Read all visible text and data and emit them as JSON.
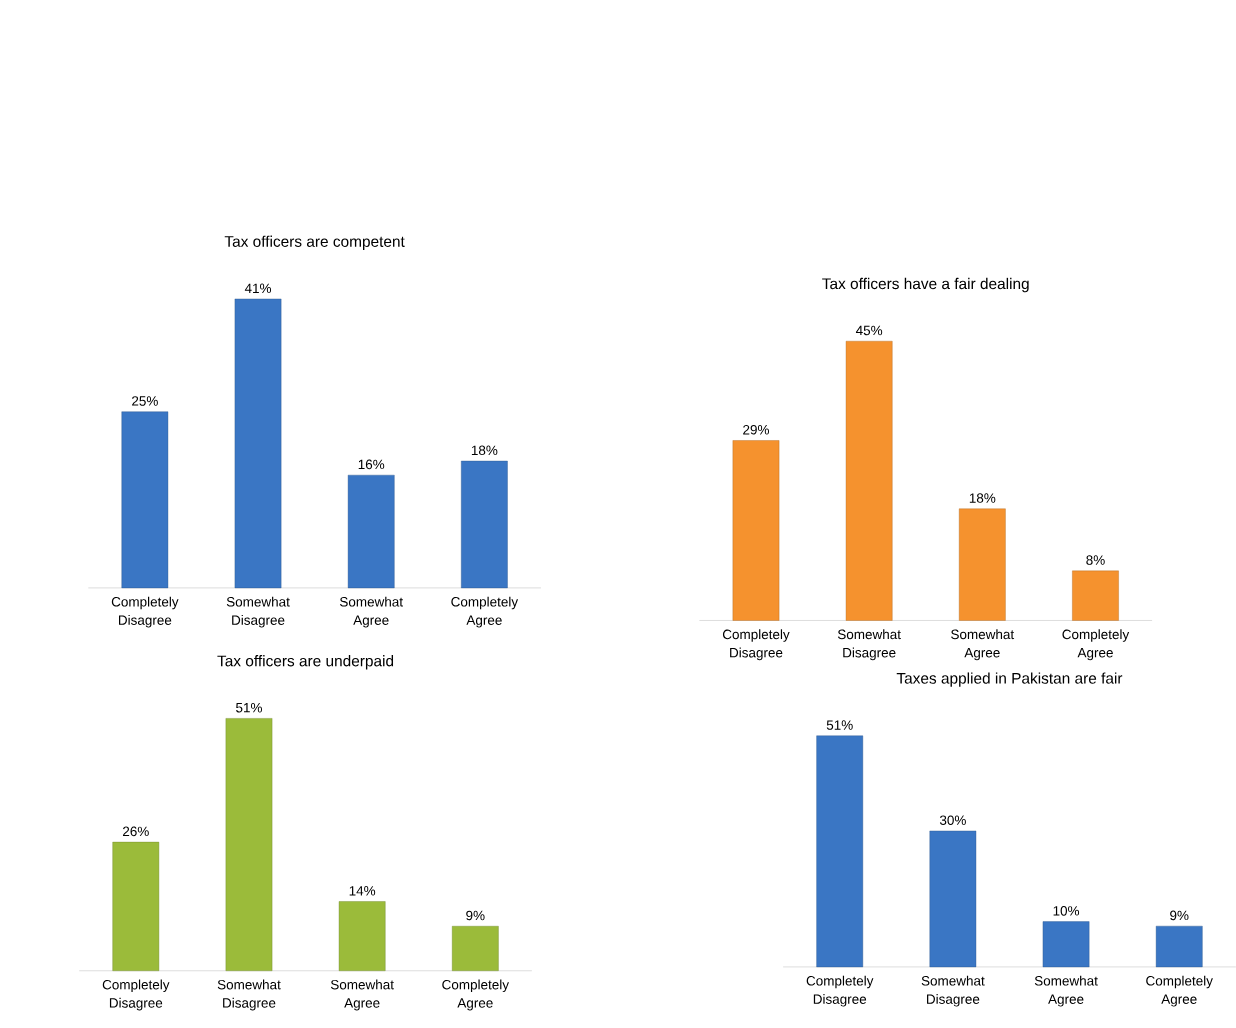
{
  "chart_data": [
    {
      "type": "bar",
      "title": "Tax officers are competent",
      "categories": [
        "Completely Disagree",
        "Somewhat Disagree",
        "Somewhat Agree",
        "Completely Agree"
      ],
      "values": [
        25,
        41,
        16,
        18
      ],
      "value_labels": [
        "25%",
        "41%",
        "16%",
        "18%"
      ],
      "color": "#3a76c4"
    },
    {
      "type": "bar",
      "title": "Tax officers have a fair dealing",
      "categories": [
        "Completely Disagree",
        "Somewhat Disagree",
        "Somewhat Agree",
        "Completely Agree"
      ],
      "values": [
        29,
        45,
        18,
        8
      ],
      "value_labels": [
        "29%",
        "45%",
        "18%",
        "8%"
      ],
      "color": "#f5922e"
    },
    {
      "type": "bar",
      "title": "Tax officers are underpaid",
      "categories": [
        "Completely Disagree",
        "Somewhat Disagree",
        "Somewhat Agree",
        "Completely Agree"
      ],
      "values": [
        26,
        51,
        14,
        9
      ],
      "value_labels": [
        "26%",
        "51%",
        "14%",
        "9%"
      ],
      "color": "#9bbb3a"
    },
    {
      "type": "bar",
      "title": "Taxes applied in Pakistan are fair",
      "categories": [
        "Completely Disagree",
        "Somewhat Disagree",
        "Somewhat Agree",
        "Completely Agree"
      ],
      "values": [
        51,
        30,
        10,
        9
      ],
      "value_labels": [
        "51%",
        "30%",
        "10%",
        "9%"
      ],
      "color": "#3a76c4"
    }
  ]
}
